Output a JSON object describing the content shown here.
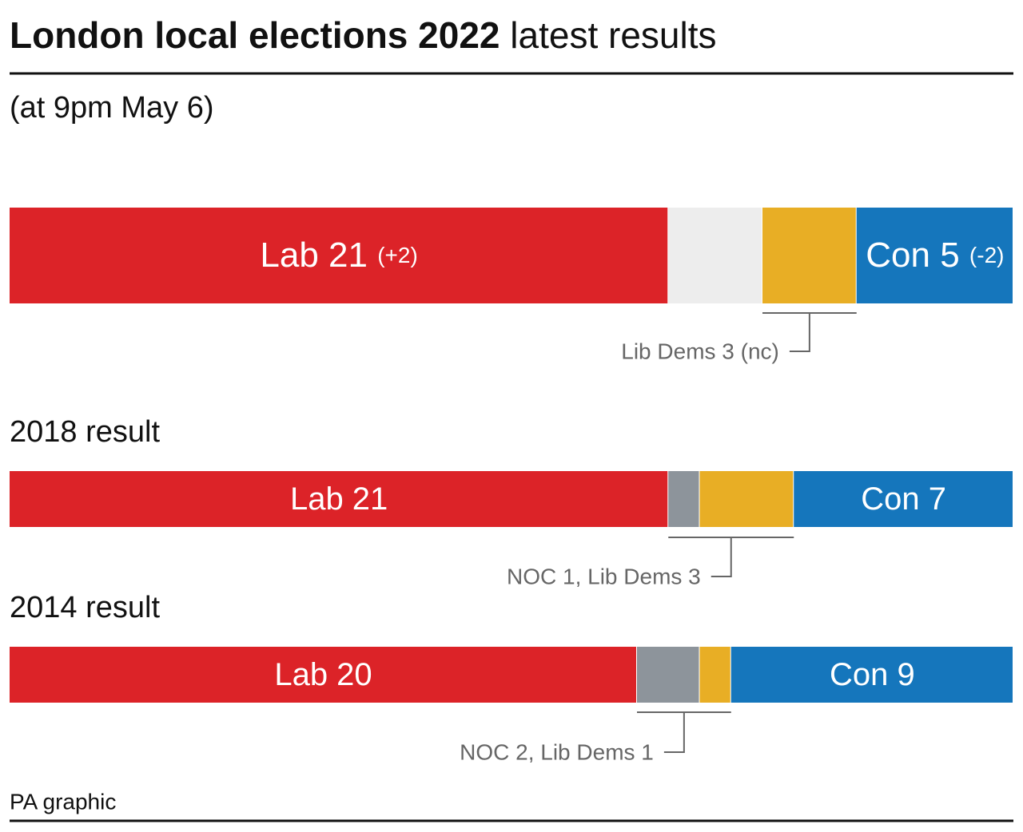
{
  "chart_data": {
    "type": "stacked-bar",
    "title": "London local elections 2022",
    "title_suffix": "latest results",
    "subtitle": "(at 9pm May 6)",
    "source": "PA graphic",
    "xlim": [
      0,
      32
    ],
    "bars": [
      {
        "segments": [
          {
            "value": 21,
            "color": "#dc2328",
            "label": "Lab 21",
            "change": "(+2)"
          },
          {
            "value": 3,
            "color": "#ededed"
          },
          {
            "value": 3,
            "color": "#e8ae25"
          },
          {
            "value": 5,
            "color": "#1576bc",
            "label": "Con 5",
            "change": "(-2)"
          }
        ],
        "callout": {
          "text": "Lib Dems 3 (nc)",
          "from": 2,
          "to": 2
        }
      },
      {
        "heading": "2018 result",
        "segments": [
          {
            "value": 21,
            "color": "#dc2328",
            "label": "Lab 21"
          },
          {
            "value": 1,
            "color": "#8d949b"
          },
          {
            "value": 3,
            "color": "#e8ae25"
          },
          {
            "value": 7,
            "color": "#1576bc",
            "label": "Con 7"
          }
        ],
        "callout": {
          "text": "NOC 1, Lib Dems 3",
          "from": 1,
          "to": 2
        }
      },
      {
        "heading": "2014 result",
        "segments": [
          {
            "value": 20,
            "color": "#dc2328",
            "label": "Lab 20"
          },
          {
            "value": 2,
            "color": "#8d949b"
          },
          {
            "value": 1,
            "color": "#e8ae25"
          },
          {
            "value": 9,
            "color": "#1576bc",
            "label": "Con 9"
          }
        ],
        "callout": {
          "text": "NOC 2, Lib Dems 1",
          "from": 1,
          "to": 2
        }
      }
    ]
  }
}
